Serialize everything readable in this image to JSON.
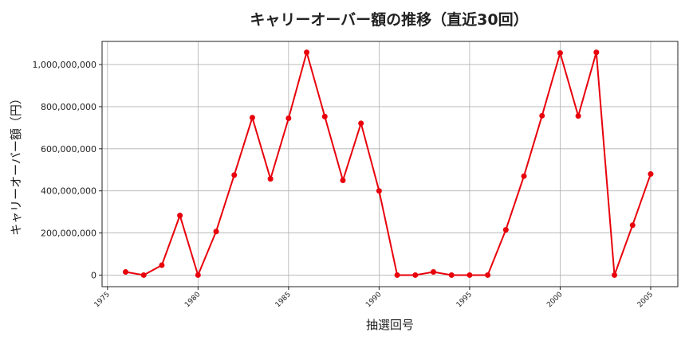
{
  "chart_data": {
    "type": "line",
    "title": "キャリーオーバー額の推移（直近30回）",
    "xlabel": "抽選回号",
    "ylabel": "キャリーオーバー額（円）",
    "xlim": [
      1974.7,
      2006.5
    ],
    "ylim": [
      -55000000,
      1110000000
    ],
    "xticks": [
      1975,
      1980,
      1985,
      1990,
      1995,
      2000,
      2005
    ],
    "yticks": [
      0,
      200000000,
      400000000,
      600000000,
      800000000,
      1000000000
    ],
    "ytick_labels": [
      "0",
      "200,000,000",
      "400,000,000",
      "600,000,000",
      "800,000,000",
      "1,000,000,000"
    ],
    "grid": true,
    "color": "#e8000b",
    "series": [
      {
        "x": [
          1976,
          1977,
          1978,
          1979,
          1980,
          1981,
          1982,
          1983,
          1984,
          1985,
          1986,
          1987,
          1988,
          1989,
          1990,
          1991,
          1992,
          1993,
          1994,
          1995,
          1996,
          1997,
          1998,
          1999,
          2000,
          2001,
          2002,
          2003,
          2004,
          2005
        ],
        "y": [
          15000000,
          0,
          47000000,
          283000000,
          0,
          207000000,
          475000000,
          748000000,
          457000000,
          745000000,
          1058000000,
          753000000,
          450000000,
          721000000,
          400000000,
          0,
          0,
          15000000,
          0,
          0,
          0,
          215000000,
          470000000,
          757000000,
          1055000000,
          756000000,
          1058000000,
          0,
          237000000,
          480000000
        ]
      }
    ]
  }
}
